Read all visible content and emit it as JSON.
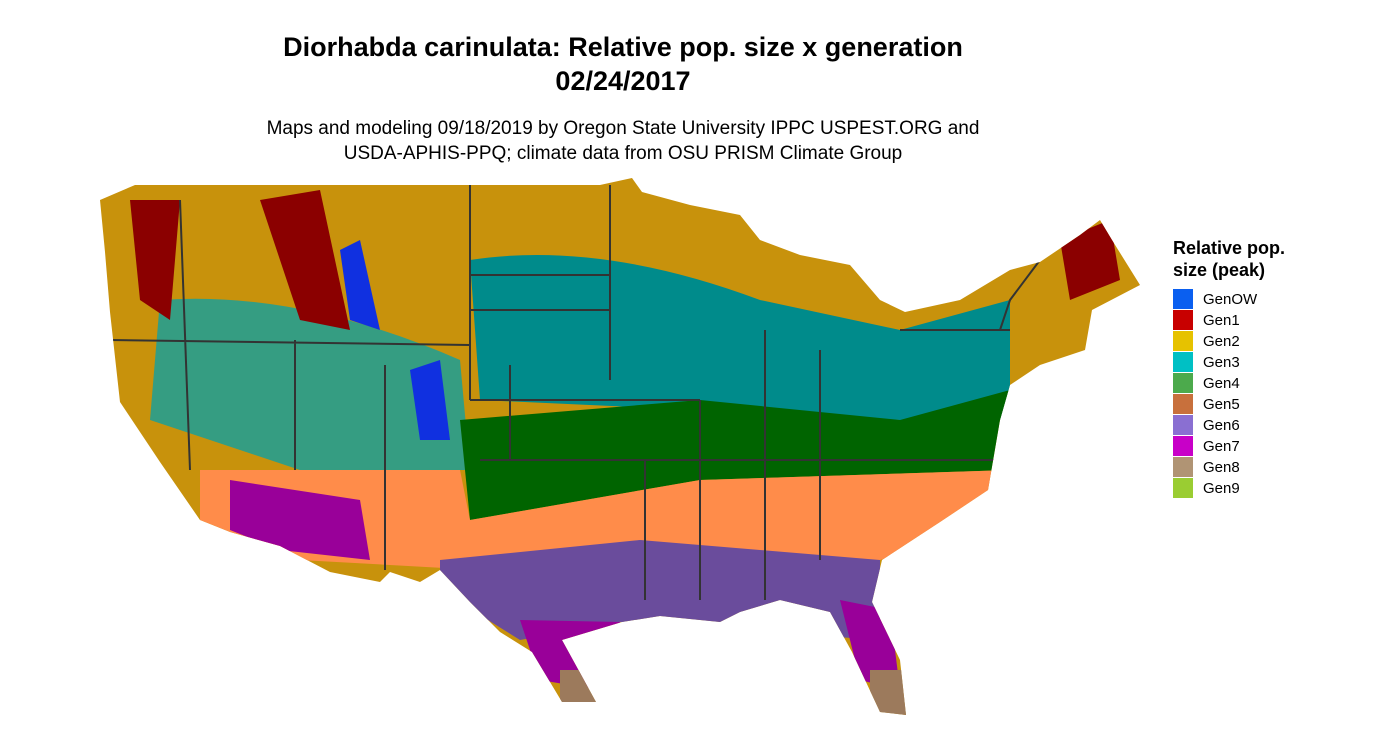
{
  "title": [
    "Diorhabda carinulata: Relative pop. size x generation",
    "02/24/2017"
  ],
  "subtitle": [
    "Maps and modeling 09/18/2019 by Oregon State University IPPC USPEST.ORG and",
    "USDA-APHIS-PPQ; climate data from OSU PRISM Climate Group"
  ],
  "legend": {
    "title": [
      "Relative pop.",
      "size (peak)"
    ],
    "items": [
      {
        "label": "GenOW",
        "color": "#0a5ff0"
      },
      {
        "label": "Gen1",
        "color": "#c80000"
      },
      {
        "label": "Gen2",
        "color": "#e6c200"
      },
      {
        "label": "Gen3",
        "color": "#00c0c4"
      },
      {
        "label": "Gen4",
        "color": "#4caa4c"
      },
      {
        "label": "Gen5",
        "color": "#c8703c"
      },
      {
        "label": "Gen6",
        "color": "#8a6fd2"
      },
      {
        "label": "Gen7",
        "color": "#c800c8"
      },
      {
        "label": "Gen8",
        "color": "#b09474"
      },
      {
        "label": "Gen9",
        "color": "#9acd32"
      }
    ]
  }
}
